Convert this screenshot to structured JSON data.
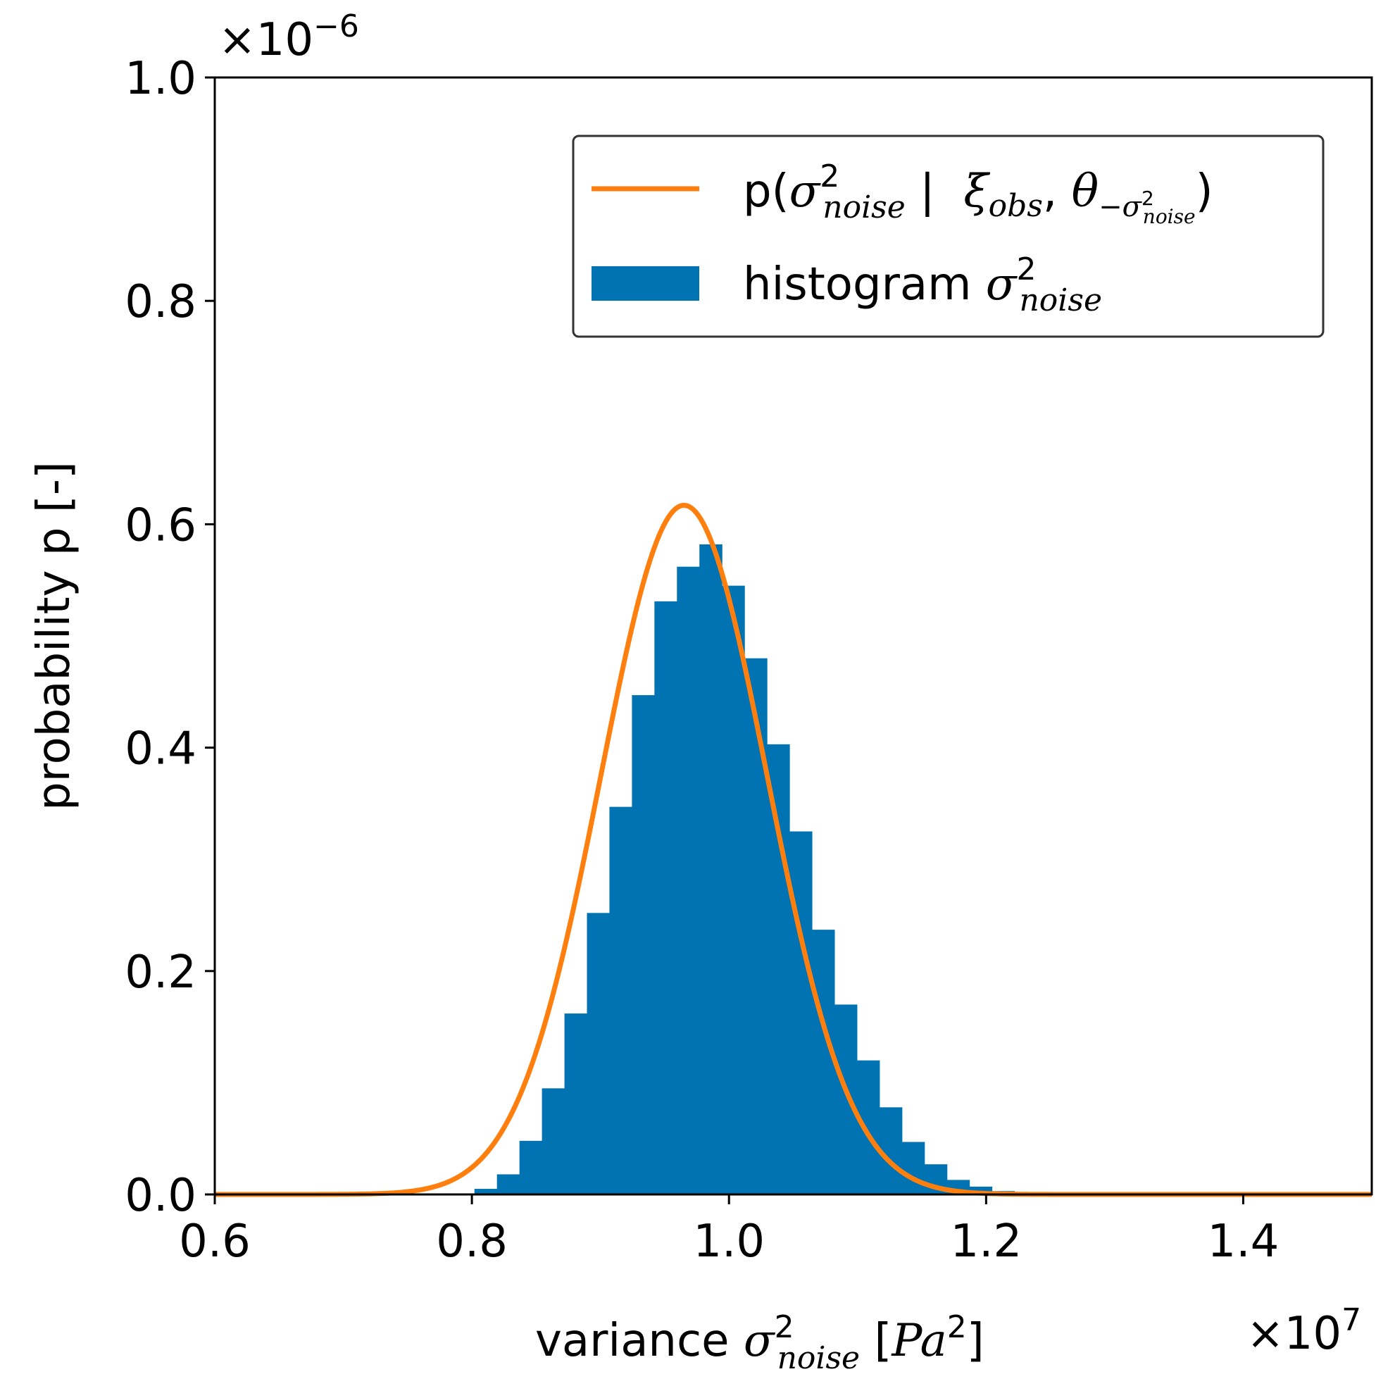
{
  "chart_data": {
    "type": "bar",
    "title": "",
    "xlabel": {
      "prefix": "variance ",
      "symbol": "σ",
      "sup": "2",
      "sub": "noise",
      "unit_open": " [",
      "unit": "Pa",
      "unit_sup": "2",
      "unit_close": "]"
    },
    "ylabel": "probability p [-]",
    "xlim": [
      0.6,
      1.5
    ],
    "ylim": [
      0.0,
      1.0
    ],
    "x_scale_label": {
      "base": "×10",
      "exp": "7"
    },
    "y_scale_label": {
      "base": "×10",
      "exp": "−6"
    },
    "x_ticks": [
      0.6,
      0.8,
      1.0,
      1.2,
      1.4
    ],
    "x_tick_labels": [
      "0.6",
      "0.8",
      "1.0",
      "1.2",
      "1.4"
    ],
    "y_ticks": [
      0.0,
      0.2,
      0.4,
      0.6,
      0.8,
      1.0
    ],
    "y_tick_labels": [
      "0.0",
      "0.2",
      "0.4",
      "0.6",
      "0.8",
      "1.0"
    ],
    "histogram": {
      "name": "histogram σ²noise",
      "color": "#0173b2",
      "bin_edges": [
        0.802,
        0.8195,
        0.837,
        0.8545,
        0.872,
        0.8895,
        0.907,
        0.9245,
        0.942,
        0.9595,
        0.977,
        0.9945,
        1.012,
        1.0295,
        1.047,
        1.0645,
        1.082,
        1.0995,
        1.117,
        1.1345,
        1.152,
        1.1695,
        1.187,
        1.2045,
        1.222
      ],
      "values": [
        0.005,
        0.018,
        0.048,
        0.095,
        0.162,
        0.252,
        0.347,
        0.447,
        0.531,
        0.562,
        0.582,
        0.545,
        0.48,
        0.403,
        0.325,
        0.237,
        0.17,
        0.12,
        0.078,
        0.047,
        0.027,
        0.013,
        0.007,
        0.003
      ]
    },
    "curve": {
      "name": "p(σ²noise | ξobs, θ−σ²noise)",
      "color": "#ff7f0e",
      "distribution": "gaussian",
      "mean": 0.965,
      "std": 0.0648,
      "peak": 0.617
    },
    "legend": {
      "position": "upper right",
      "curve_label": {
        "p_open": "p(",
        "sigma": "σ",
        "sup": "2",
        "sub": "noise",
        "given": " |  ",
        "xi": "ξ",
        "xi_sub": "obs",
        "comma": ", ",
        "theta": "θ",
        "theta_sub_minus": "−",
        "theta_sub_sigma": "σ",
        "theta_sub_sup": "2",
        "theta_sub_sub": "noise",
        "close": ")"
      },
      "hist_label": {
        "prefix": "histogram ",
        "sigma": "σ",
        "sup": "2",
        "sub": "noise"
      }
    }
  }
}
